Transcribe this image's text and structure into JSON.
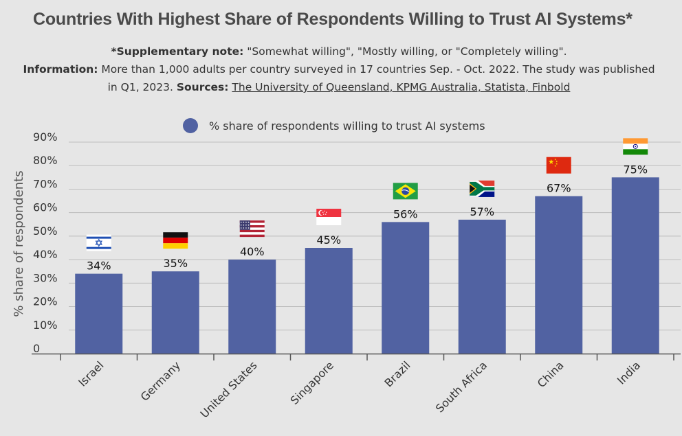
{
  "header": {
    "title": "Countries With Highest Share of Respondents Willing to Trust AI Systems*"
  },
  "notes": {
    "supp_label": "*Supplementary note:",
    "supp_text": " \"Somewhat willing\", \"Mostly willing, or \"Completely willing\".",
    "info_label": "Information:",
    "info_text": " More than 1,000 adults per country surveyed in 17 countries Sep. - Oct. 2022. The study was published in Q1, 2023. ",
    "sources_label": "Sources:",
    "sources_text": "The University of Queensland, KPMG Australia, Statista, Finbold"
  },
  "chart_data": {
    "type": "bar",
    "categories": [
      "Israel",
      "Germany",
      "United States",
      "Singapore",
      "Brazil",
      "South Africa",
      "China",
      "India"
    ],
    "series": [
      {
        "name": "% share of respondents willing to trust AI systems",
        "values": [
          34,
          35,
          40,
          45,
          56,
          57,
          67,
          75
        ]
      }
    ],
    "data_labels": [
      "34%",
      "35%",
      "40%",
      "45%",
      "56%",
      "57%",
      "67%",
      "75%"
    ],
    "flags": [
      "israel-flag-icon",
      "germany-flag-icon",
      "united-states-flag-icon",
      "singapore-flag-icon",
      "brazil-flag-icon",
      "south-africa-flag-icon",
      "china-flag-icon",
      "india-flag-icon"
    ],
    "ylabel": "% share of respondents",
    "ylim": [
      0,
      90
    ],
    "yticks": [
      0,
      10,
      20,
      30,
      40,
      50,
      60,
      70,
      80,
      90
    ],
    "ytick_labels": [
      "0",
      "10%",
      "20%",
      "30%",
      "40%",
      "50%",
      "60%",
      "70%",
      "80%",
      "90%"
    ],
    "grid": true,
    "legend_position": "top",
    "bar_color": "#5162a2"
  }
}
